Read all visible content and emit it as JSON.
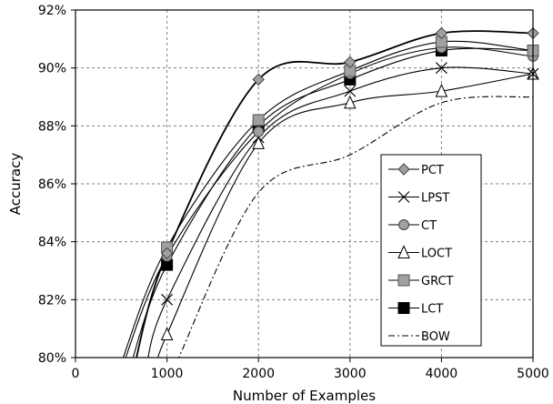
{
  "chart_data": {
    "type": "line",
    "title": "",
    "xlabel": "Number of Examples",
    "ylabel": "Accuracy",
    "xlim": [
      0,
      5000
    ],
    "ylim": [
      80,
      92
    ],
    "x_ticks": [
      0,
      1000,
      2000,
      3000,
      4000,
      5000
    ],
    "y_ticks": [
      80,
      82,
      84,
      86,
      88,
      90,
      92
    ],
    "y_tick_labels": [
      "80%",
      "82%",
      "84%",
      "86%",
      "88%",
      "90%",
      "92%"
    ],
    "grid": true,
    "legend_position": "right",
    "x": [
      1000,
      2000,
      3000,
      4000,
      5000
    ],
    "series": [
      {
        "name": "PCT",
        "marker": "diamond",
        "values": [
          83.6,
          89.6,
          90.2,
          91.2,
          91.2
        ]
      },
      {
        "name": "LPST",
        "marker": "x",
        "values": [
          82.0,
          87.6,
          89.2,
          90.0,
          89.8
        ]
      },
      {
        "name": "CT",
        "marker": "circle",
        "values": [
          83.5,
          87.8,
          89.8,
          90.7,
          90.4
        ]
      },
      {
        "name": "LOCT",
        "marker": "triangle",
        "values": [
          80.8,
          87.4,
          88.8,
          89.2,
          89.8
        ]
      },
      {
        "name": "GRCT",
        "marker": "square",
        "values": [
          83.8,
          88.2,
          89.9,
          90.9,
          90.6
        ]
      },
      {
        "name": "LCT",
        "marker": "filled-square",
        "values": [
          83.2,
          88.0,
          89.6,
          90.6,
          90.6
        ]
      },
      {
        "name": "BOW",
        "marker": "none",
        "line_style": "dashdot",
        "x": [
          1100,
          2000,
          3000,
          4000,
          5000
        ],
        "values": [
          79.8,
          85.7,
          87.0,
          88.8,
          89.0
        ]
      }
    ],
    "colors": {
      "axis": "#000000",
      "grid": "#808080",
      "marker_fill_light": "#a0a0a0",
      "marker_fill_dark": "#000000"
    }
  }
}
